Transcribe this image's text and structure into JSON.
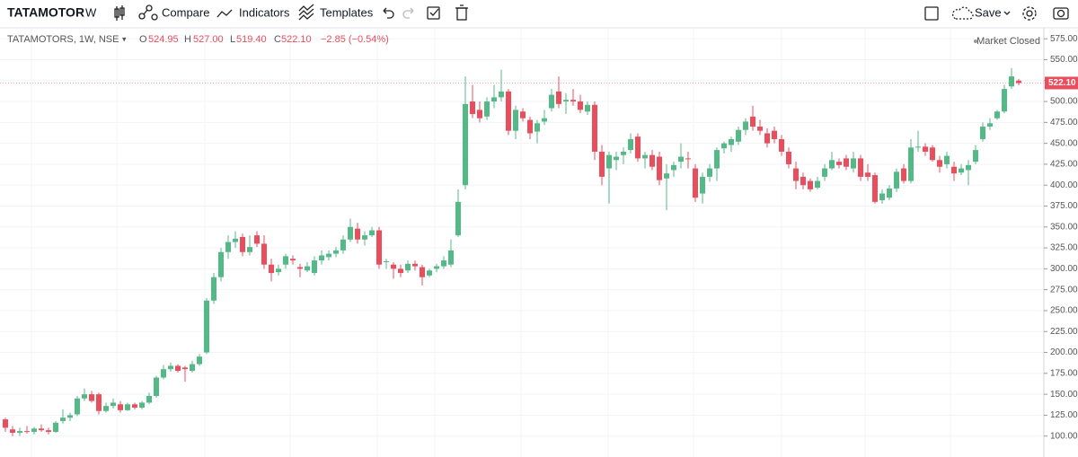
{
  "toolbar": {
    "symbol": "TATAMOTOR",
    "interval": "W",
    "compare": "Compare",
    "indicators": "Indicators",
    "templates": "Templates",
    "save": "Save"
  },
  "legend": {
    "title": "TATAMOTORS, 1W, NSE",
    "open_label": "O",
    "open": "524.95",
    "high_label": "H",
    "high": "527.00",
    "low_label": "L",
    "low": "519.40",
    "close_label": "C",
    "close": "522.10",
    "change": "−2.85 (−0.54%)",
    "status": "Market Closed"
  },
  "chart_data": {
    "type": "candlestick",
    "open": [
      120,
      108,
      104,
      106,
      105,
      109,
      107,
      105,
      118,
      122,
      126,
      145,
      150,
      150,
      130,
      136,
      138,
      131,
      138,
      134,
      140,
      148,
      170,
      180,
      184,
      182,
      178,
      186,
      200,
      262,
      290,
      320,
      332,
      338,
      320,
      340,
      330,
      305,
      296,
      305,
      312,
      302,
      298,
      295,
      310,
      314,
      318,
      322,
      335,
      348,
      335,
      340,
      346,
      308,
      305,
      300,
      298,
      306,
      302,
      292,
      300,
      303,
      305,
      340,
      400,
      500,
      490,
      482,
      500,
      505,
      512,
      465,
      488,
      478,
      464,
      476,
      492,
      512,
      500,
      502,
      500,
      488,
      496,
      440,
      420,
      430,
      436,
      442,
      458,
      432,
      436,
      434,
      408,
      418,
      428,
      432,
      420,
      390,
      410,
      420,
      444,
      448,
      452,
      466,
      482,
      470,
      462,
      465,
      455,
      440,
      420,
      410,
      405,
      397,
      410,
      420,
      428,
      432,
      420,
      432,
      415,
      412,
      382,
      385,
      396,
      420,
      405,
      445,
      446,
      445,
      430,
      425,
      422,
      415,
      418,
      428,
      455,
      470,
      480,
      488,
      518,
      524.95
    ],
    "high": [
      122,
      112,
      110,
      112,
      111,
      114,
      110,
      118,
      132,
      128,
      148,
      157,
      154,
      152,
      140,
      145,
      142,
      140,
      140,
      142,
      152,
      172,
      185,
      188,
      186,
      184,
      190,
      198,
      265,
      295,
      325,
      340,
      345,
      342,
      340,
      345,
      340,
      312,
      305,
      318,
      316,
      306,
      308,
      315,
      322,
      322,
      326,
      340,
      360,
      355,
      345,
      350,
      350,
      312,
      308,
      305,
      310,
      310,
      305,
      300,
      306,
      315,
      335,
      395,
      530,
      520,
      500,
      505,
      520,
      538,
      515,
      495,
      492,
      482,
      478,
      490,
      515,
      530,
      510,
      515,
      508,
      500,
      500,
      448,
      440,
      440,
      445,
      462,
      462,
      440,
      442,
      440,
      425,
      428,
      450,
      440,
      425,
      415,
      425,
      445,
      452,
      458,
      470,
      480,
      495,
      478,
      468,
      470,
      460,
      445,
      428,
      415,
      408,
      410,
      425,
      440,
      432,
      436,
      440,
      436,
      425,
      415,
      395,
      400,
      420,
      425,
      455,
      465,
      450,
      448,
      435,
      440,
      428,
      425,
      430,
      448,
      475,
      480,
      490,
      520,
      540,
      527
    ],
    "low": [
      105,
      100,
      100,
      103,
      102,
      105,
      102,
      104,
      115,
      118,
      124,
      142,
      140,
      126,
      128,
      133,
      128,
      130,
      132,
      132,
      138,
      146,
      168,
      177,
      176,
      165,
      176,
      184,
      198,
      258,
      285,
      312,
      325,
      315,
      316,
      326,
      300,
      285,
      292,
      300,
      305,
      290,
      296,
      292,
      305,
      310,
      314,
      318,
      332,
      330,
      328,
      338,
      300,
      300,
      288,
      290,
      295,
      298,
      280,
      290,
      296,
      300,
      302,
      338,
      395,
      480,
      475,
      478,
      492,
      500,
      460,
      455,
      476,
      455,
      450,
      472,
      488,
      492,
      485,
      495,
      486,
      484,
      430,
      400,
      378,
      418,
      425,
      438,
      428,
      420,
      418,
      400,
      370,
      410,
      420,
      420,
      380,
      378,
      404,
      405,
      438,
      440,
      448,
      460,
      465,
      460,
      445,
      450,
      435,
      420,
      395,
      395,
      392,
      395,
      405,
      418,
      420,
      418,
      415,
      405,
      405,
      378,
      378,
      382,
      392,
      402,
      402,
      440,
      435,
      428,
      415,
      420,
      405,
      412,
      400,
      425,
      452,
      466,
      478,
      486,
      515,
      519.4
    ],
    "close": [
      110,
      104,
      106,
      105,
      109,
      107,
      105,
      116,
      122,
      125,
      145,
      150,
      142,
      130,
      136,
      140,
      131,
      138,
      134,
      140,
      148,
      170,
      180,
      184,
      178,
      180,
      186,
      195,
      262,
      290,
      320,
      332,
      336,
      320,
      326,
      330,
      305,
      295,
      300,
      315,
      310,
      300,
      303,
      310,
      316,
      318,
      322,
      335,
      350,
      335,
      340,
      346,
      305,
      309,
      300,
      295,
      306,
      303,
      290,
      298,
      303,
      310,
      322,
      380,
      497,
      485,
      480,
      500,
      505,
      512,
      465,
      490,
      480,
      462,
      474,
      480,
      508,
      497,
      502,
      500,
      490,
      496,
      440,
      410,
      436,
      434,
      440,
      455,
      432,
      436,
      422,
      406,
      414,
      424,
      434,
      431,
      385,
      410,
      420,
      442,
      450,
      455,
      466,
      476,
      470,
      465,
      450,
      455,
      440,
      425,
      405,
      400,
      395,
      405,
      420,
      430,
      424,
      422,
      432,
      410,
      410,
      380,
      390,
      396,
      416,
      405,
      445,
      446,
      440,
      430,
      422,
      435,
      414,
      420,
      424,
      442,
      470,
      474,
      488,
      515,
      530,
      522.1
    ],
    "up_color": "#53b987",
    "down_color": "#eb4d5c",
    "ylim": [
      75,
      587
    ],
    "yticks": [
      {
        "value": 575,
        "label": "575.00"
      },
      {
        "value": 550,
        "label": "550.00"
      },
      {
        "value": 525,
        "label": "525.00"
      },
      {
        "value": 500,
        "label": "500.00"
      },
      {
        "value": 475,
        "label": "475.00"
      },
      {
        "value": 450,
        "label": "450.00"
      },
      {
        "value": 425,
        "label": "425.00"
      },
      {
        "value": 400,
        "label": "400.00"
      },
      {
        "value": 375,
        "label": "375.00"
      },
      {
        "value": 350,
        "label": "350.00"
      },
      {
        "value": 325,
        "label": "325.00"
      },
      {
        "value": 300,
        "label": "300.00"
      },
      {
        "value": 275,
        "label": "275.00"
      },
      {
        "value": 250,
        "label": "250.00"
      },
      {
        "value": 225,
        "label": "225.00"
      },
      {
        "value": 200,
        "label": "200.00"
      },
      {
        "value": 175,
        "label": "175.00"
      },
      {
        "value": 150,
        "label": "150.00"
      },
      {
        "value": 125,
        "label": "125.00"
      },
      {
        "value": 100,
        "label": "100.00"
      }
    ],
    "grid": true,
    "price_label": "522.10"
  }
}
